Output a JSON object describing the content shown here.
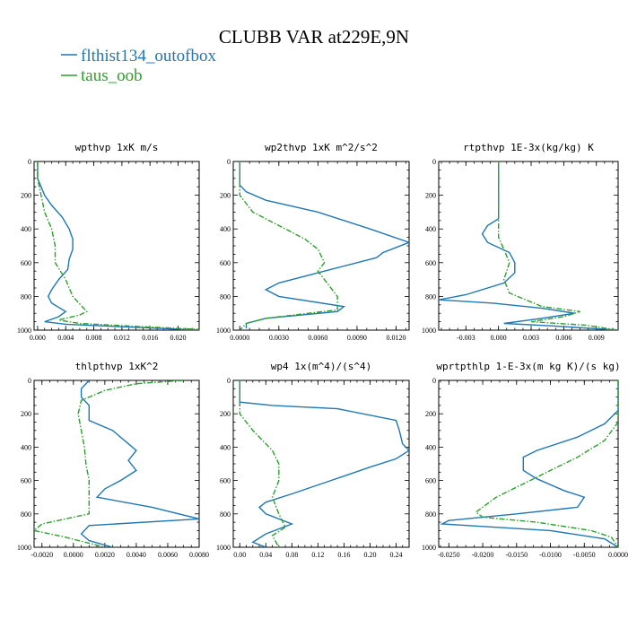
{
  "figure": {
    "title": "CLUBB VAR at229E,9N",
    "legend": [
      {
        "label": "flthist134_outofbox",
        "color": "#1f77b4",
        "dash": "solid"
      },
      {
        "label": "taus_oob",
        "color": "#2ca02c",
        "dash": "dashdot"
      }
    ]
  },
  "chart_data": [
    {
      "type": "line",
      "title": "wpthvp   1xK m/s",
      "ylim": [
        1000,
        0
      ],
      "xlim": [
        -0.0005,
        0.023
      ],
      "xticks": [
        "0.000",
        "0.004",
        "0.008",
        "0.012",
        "0.016",
        "0.020"
      ],
      "yticks": [
        "0",
        "200",
        "400",
        "600",
        "800",
        "1000"
      ],
      "series": [
        {
          "name": "flthist134_outofbox",
          "points": [
            [
              0.0,
              0
            ],
            [
              0.0,
              100
            ],
            [
              0.0005,
              150
            ],
            [
              0.001,
              200
            ],
            [
              0.002,
              260
            ],
            [
              0.0035,
              330
            ],
            [
              0.0045,
              400
            ],
            [
              0.005,
              460
            ],
            [
              0.005,
              520
            ],
            [
              0.0045,
              580
            ],
            [
              0.0043,
              640
            ],
            [
              0.003,
              700
            ],
            [
              0.002,
              760
            ],
            [
              0.0015,
              800
            ],
            [
              0.002,
              840
            ],
            [
              0.004,
              890
            ],
            [
              0.003,
              920
            ],
            [
              0.001,
              950
            ],
            [
              0.004,
              965
            ],
            [
              0.015,
              985
            ],
            [
              0.023,
              1000
            ]
          ]
        },
        {
          "name": "taus_oob",
          "points": [
            [
              0.0,
              0
            ],
            [
              0.0,
              100
            ],
            [
              0.0005,
              200
            ],
            [
              0.001,
              300
            ],
            [
              0.002,
              400
            ],
            [
              0.0025,
              500
            ],
            [
              0.0025,
              600
            ],
            [
              0.004,
              700
            ],
            [
              0.005,
              800
            ],
            [
              0.007,
              890
            ],
            [
              0.006,
              910
            ],
            [
              0.003,
              940
            ],
            [
              0.006,
              960
            ],
            [
              0.015,
              980
            ],
            [
              0.023,
              995
            ]
          ]
        }
      ]
    },
    {
      "type": "line",
      "title": "wp2thvp   1xK m^2/s^2",
      "ylim": [
        1000,
        0
      ],
      "xlim": [
        -0.0005,
        0.013
      ],
      "xticks": [
        "0.0000",
        "0.0030",
        "0.0060",
        "0.0090",
        "0.0120"
      ],
      "yticks": [
        "0",
        "200",
        "400",
        "600",
        "800",
        "1000"
      ],
      "series": [
        {
          "name": "flthist134_outofbox",
          "points": [
            [
              0.0,
              0
            ],
            [
              0.0,
              140
            ],
            [
              0.0005,
              180
            ],
            [
              0.002,
              230
            ],
            [
              0.006,
              300
            ],
            [
              0.01,
              400
            ],
            [
              0.013,
              480
            ],
            [
              0.011,
              540
            ],
            [
              0.0105,
              570
            ],
            [
              0.007,
              640
            ],
            [
              0.003,
              720
            ],
            [
              0.002,
              760
            ],
            [
              0.003,
              800
            ],
            [
              0.008,
              860
            ],
            [
              0.0075,
              890
            ],
            [
              0.002,
              930
            ],
            [
              0.0005,
              960
            ],
            [
              0.0005,
              990
            ]
          ]
        },
        {
          "name": "taus_oob",
          "points": [
            [
              0.0,
              0
            ],
            [
              0.0,
              200
            ],
            [
              0.001,
              300
            ],
            [
              0.003,
              380
            ],
            [
              0.005,
              460
            ],
            [
              0.006,
              520
            ],
            [
              0.0065,
              600
            ],
            [
              0.006,
              650
            ],
            [
              0.0065,
              700
            ],
            [
              0.0075,
              800
            ],
            [
              0.0075,
              880
            ],
            [
              0.002,
              930
            ],
            [
              0.0005,
              960
            ],
            [
              0.0,
              1000
            ]
          ]
        }
      ]
    },
    {
      "type": "line",
      "title": "rtpthvp   1E-3x(kg/kg) K",
      "ylim": [
        1000,
        0
      ],
      "xlim": [
        -0.0055,
        0.011
      ],
      "xticks": [
        "-0.003",
        "0.000",
        "0.003",
        "0.006",
        "0.009"
      ],
      "yticks": [
        "0",
        "200",
        "400",
        "600",
        "800",
        "1000"
      ],
      "series": [
        {
          "name": "flthist134_outofbox",
          "points": [
            [
              0.0,
              0
            ],
            [
              0.0,
              340
            ],
            [
              -0.001,
              380
            ],
            [
              -0.0015,
              430
            ],
            [
              -0.001,
              480
            ],
            [
              0.001,
              540
            ],
            [
              0.0015,
              600
            ],
            [
              0.0015,
              660
            ],
            [
              0.0005,
              720
            ],
            [
              -0.003,
              790
            ],
            [
              -0.0055,
              820
            ],
            [
              -0.0005,
              840
            ],
            [
              0.004,
              870
            ],
            [
              0.007,
              900
            ],
            [
              0.004,
              930
            ],
            [
              0.0005,
              960
            ],
            [
              0.005,
              975
            ],
            [
              0.011,
              1000
            ]
          ]
        },
        {
          "name": "taus_oob",
          "points": [
            [
              0.0,
              0
            ],
            [
              0.0,
              450
            ],
            [
              0.0005,
              520
            ],
            [
              0.001,
              600
            ],
            [
              0.0005,
              700
            ],
            [
              0.001,
              780
            ],
            [
              0.004,
              860
            ],
            [
              0.0075,
              890
            ],
            [
              0.006,
              920
            ],
            [
              0.003,
              950
            ],
            [
              0.008,
              970
            ],
            [
              0.011,
              1000
            ]
          ]
        }
      ]
    },
    {
      "type": "line",
      "title": "thlpthvp   1xK^2",
      "ylim": [
        1000,
        0
      ],
      "xlim": [
        -0.0025,
        0.008
      ],
      "xticks": [
        "-0.0020",
        "0.0000",
        "0.0020",
        "0.0040",
        "0.0060",
        "0.0080"
      ],
      "yticks": [
        "0",
        "200",
        "400",
        "600",
        "800",
        "1000"
      ],
      "series": [
        {
          "name": "flthist134_outofbox",
          "points": [
            [
              0.001,
              0
            ],
            [
              0.0005,
              50
            ],
            [
              0.0005,
              100
            ],
            [
              0.001,
              150
            ],
            [
              0.001,
              240
            ],
            [
              0.0025,
              300
            ],
            [
              0.0035,
              380
            ],
            [
              0.004,
              420
            ],
            [
              0.0035,
              480
            ],
            [
              0.004,
              540
            ],
            [
              0.003,
              600
            ],
            [
              0.002,
              650
            ],
            [
              0.0015,
              700
            ],
            [
              0.005,
              760
            ],
            [
              0.008,
              830
            ],
            [
              0.001,
              870
            ],
            [
              0.0005,
              920
            ],
            [
              0.001,
              960
            ],
            [
              0.0025,
              1000
            ]
          ]
        },
        {
          "name": "taus_oob",
          "points": [
            [
              0.007,
              0
            ],
            [
              0.004,
              20
            ],
            [
              0.002,
              60
            ],
            [
              0.0005,
              120
            ],
            [
              0.0003,
              200
            ],
            [
              0.0005,
              300
            ],
            [
              0.0007,
              400
            ],
            [
              0.0008,
              500
            ],
            [
              0.001,
              600
            ],
            [
              0.001,
              700
            ],
            [
              0.001,
              800
            ],
            [
              -0.002,
              860
            ],
            [
              -0.0025,
              900
            ],
            [
              -0.0005,
              940
            ],
            [
              0.002,
              1000
            ]
          ]
        }
      ]
    },
    {
      "type": "line",
      "title": "wp4   1x(m^4)/(s^4)",
      "ylim": [
        1000,
        0
      ],
      "xlim": [
        -0.01,
        0.26
      ],
      "xticks": [
        "0.00",
        "0.04",
        "0.08",
        "0.12",
        "0.16",
        "0.20",
        "0.24"
      ],
      "yticks": [
        "0",
        "200",
        "400",
        "600",
        "800",
        "1000"
      ],
      "series": [
        {
          "name": "flthist134_outofbox",
          "points": [
            [
              0.0,
              0
            ],
            [
              0.0,
              130
            ],
            [
              0.05,
              150
            ],
            [
              0.15,
              170
            ],
            [
              0.24,
              240
            ],
            [
              0.245,
              300
            ],
            [
              0.25,
              380
            ],
            [
              0.26,
              420
            ],
            [
              0.24,
              470
            ],
            [
              0.2,
              520
            ],
            [
              0.14,
              600
            ],
            [
              0.08,
              680
            ],
            [
              0.04,
              730
            ],
            [
              0.03,
              760
            ],
            [
              0.04,
              800
            ],
            [
              0.08,
              860
            ],
            [
              0.04,
              920
            ],
            [
              0.02,
              970
            ],
            [
              0.04,
              1000
            ]
          ]
        },
        {
          "name": "taus_oob",
          "points": [
            [
              0.0,
              0
            ],
            [
              0.0,
              200
            ],
            [
              0.02,
              300
            ],
            [
              0.05,
              420
            ],
            [
              0.06,
              500
            ],
            [
              0.06,
              600
            ],
            [
              0.05,
              700
            ],
            [
              0.06,
              800
            ],
            [
              0.07,
              880
            ],
            [
              0.05,
              930
            ],
            [
              0.06,
              1000
            ]
          ]
        }
      ]
    },
    {
      "type": "line",
      "title": "wprtpthlp   1-E-3x(m kg K)/(s kg)",
      "ylim": [
        1000,
        0
      ],
      "xlim": [
        -0.0265,
        0.0
      ],
      "xticks": [
        "-0.0250",
        "-0.0200",
        "-0.0150",
        "-0.0100",
        "-0.0050",
        "0.0000"
      ],
      "yticks": [
        "0",
        "200",
        "400",
        "600",
        "800",
        "1000"
      ],
      "series": [
        {
          "name": "flthist134_outofbox",
          "points": [
            [
              0.0,
              0
            ],
            [
              0.0,
              180
            ],
            [
              -0.002,
              260
            ],
            [
              -0.006,
              340
            ],
            [
              -0.012,
              420
            ],
            [
              -0.014,
              460
            ],
            [
              -0.014,
              540
            ],
            [
              -0.012,
              590
            ],
            [
              -0.008,
              660
            ],
            [
              -0.005,
              700
            ],
            [
              -0.006,
              760
            ],
            [
              -0.015,
              800
            ],
            [
              -0.025,
              840
            ],
            [
              -0.026,
              860
            ],
            [
              -0.01,
              900
            ],
            [
              -0.002,
              950
            ],
            [
              0.0,
              1000
            ]
          ]
        },
        {
          "name": "taus_oob",
          "points": [
            [
              0.0,
              0
            ],
            [
              0.0,
              250
            ],
            [
              -0.002,
              360
            ],
            [
              -0.006,
              460
            ],
            [
              -0.01,
              540
            ],
            [
              -0.013,
              600
            ],
            [
              -0.018,
              700
            ],
            [
              -0.021,
              790
            ],
            [
              -0.02,
              820
            ],
            [
              -0.012,
              850
            ],
            [
              -0.004,
              900
            ],
            [
              -0.001,
              940
            ],
            [
              0.0,
              1000
            ]
          ]
        }
      ]
    }
  ]
}
